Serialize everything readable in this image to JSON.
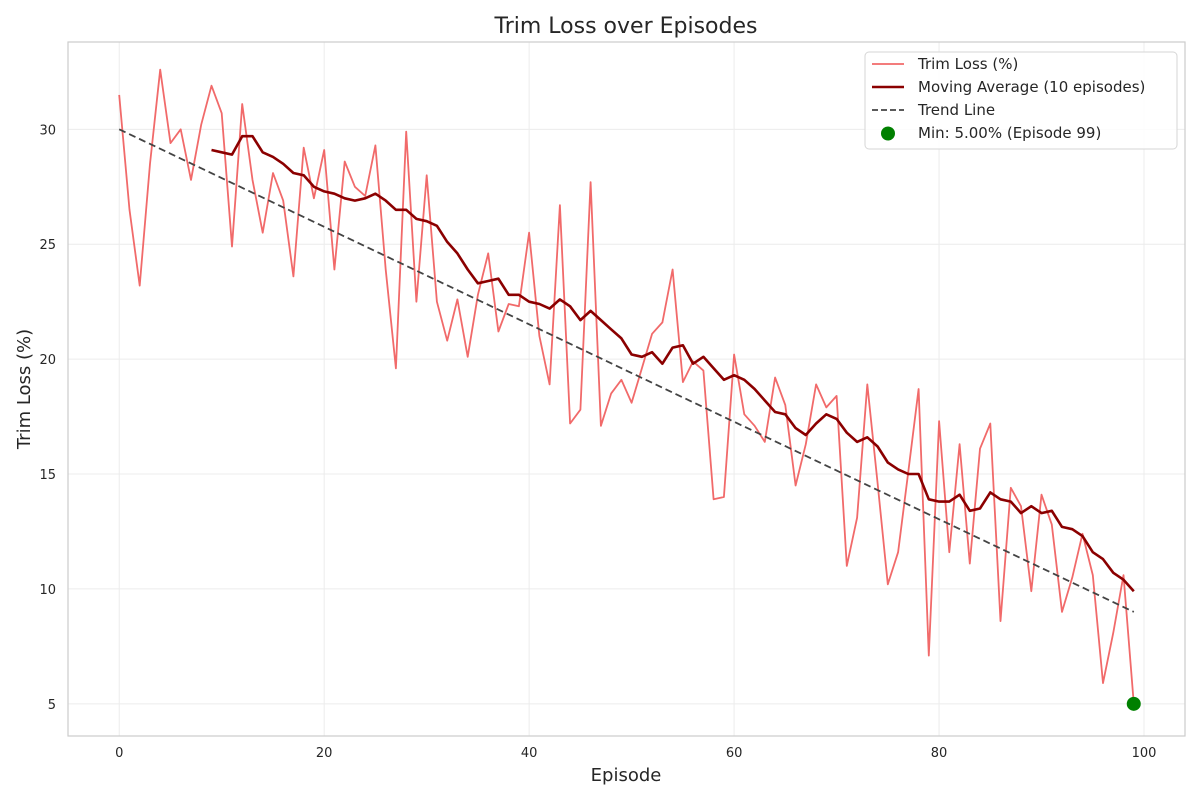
{
  "chart_data": {
    "type": "line",
    "title": "Trim Loss over Episodes",
    "xlabel": "Episode",
    "ylabel": "Trim Loss (%)",
    "xlim": [
      -5,
      104
    ],
    "ylim": [
      3.6,
      33.8
    ],
    "xticks": [
      0,
      20,
      40,
      60,
      80,
      100
    ],
    "yticks": [
      5,
      10,
      15,
      20,
      25,
      30
    ],
    "grid": true,
    "legend_position": "top-right",
    "series": [
      {
        "name": "Trim Loss (%)",
        "style": "line",
        "color": "#f05a5a",
        "x_start": 0,
        "values": [
          31.5,
          26.5,
          23.2,
          28.5,
          32.6,
          29.4,
          30.0,
          27.8,
          30.2,
          31.9,
          30.7,
          24.9,
          31.1,
          27.8,
          25.5,
          28.1,
          26.9,
          23.6,
          29.2,
          27.0,
          29.1,
          23.9,
          28.6,
          27.5,
          27.1,
          29.3,
          23.9,
          19.6,
          29.9,
          22.5,
          28.0,
          22.5,
          20.8,
          22.6,
          20.1,
          22.8,
          24.6,
          21.2,
          22.4,
          22.3,
          25.5,
          21.0,
          18.9,
          26.7,
          17.2,
          17.8,
          27.7,
          17.1,
          18.5,
          19.1,
          18.1,
          19.6,
          21.1,
          21.6,
          23.9,
          19.0,
          19.9,
          19.5,
          13.9,
          14.0,
          20.2,
          17.6,
          17.1,
          16.4,
          19.2,
          18.0,
          14.5,
          16.3,
          18.9,
          17.9,
          18.4,
          11.0,
          13.1,
          18.9,
          14.6,
          10.2,
          11.6,
          15.1,
          18.7,
          7.1,
          17.3,
          11.6,
          16.3,
          11.1,
          16.1,
          17.2,
          8.6,
          14.4,
          13.6,
          9.9,
          14.1,
          12.8,
          9.0,
          10.5,
          12.4,
          10.6,
          5.9,
          8.1,
          10.6,
          5.0
        ]
      },
      {
        "name": "Moving Average (10 episodes)",
        "style": "line",
        "color": "#8b0000",
        "x_start": 9,
        "values": [
          29.1,
          29.0,
          28.9,
          29.7,
          29.7,
          29.0,
          28.8,
          28.5,
          28.1,
          28.0,
          27.5,
          27.3,
          27.2,
          27.0,
          26.9,
          27.0,
          27.2,
          26.9,
          26.5,
          26.5,
          26.1,
          26.0,
          25.8,
          25.1,
          24.6,
          23.9,
          23.3,
          23.4,
          23.5,
          22.8,
          22.8,
          22.5,
          22.4,
          22.2,
          22.6,
          22.3,
          21.7,
          22.1,
          21.7,
          21.3,
          20.9,
          20.2,
          20.1,
          20.3,
          19.8,
          20.5,
          20.6,
          19.8,
          20.1,
          19.6,
          19.1,
          19.3,
          19.1,
          18.7,
          18.2,
          17.7,
          17.6,
          17.0,
          16.7,
          17.2,
          17.6,
          17.4,
          16.8,
          16.4,
          16.6,
          16.2,
          15.5,
          15.2,
          15.0,
          15.0,
          13.9,
          13.8,
          13.8,
          14.1,
          13.4,
          13.5,
          14.2,
          13.9,
          13.8,
          13.3,
          13.6,
          13.3,
          13.4,
          12.7,
          12.6,
          12.3,
          11.6,
          11.3,
          10.7,
          10.4,
          9.9
        ]
      },
      {
        "name": "Trend Line",
        "style": "dashed",
        "color": "#444444",
        "x": [
          0,
          99
        ],
        "values": [
          30.0,
          9.0
        ]
      },
      {
        "name": "Min: 5.00% (Episode 99)",
        "style": "marker",
        "color": "#008000",
        "x": [
          99
        ],
        "values": [
          5.0
        ]
      }
    ]
  }
}
